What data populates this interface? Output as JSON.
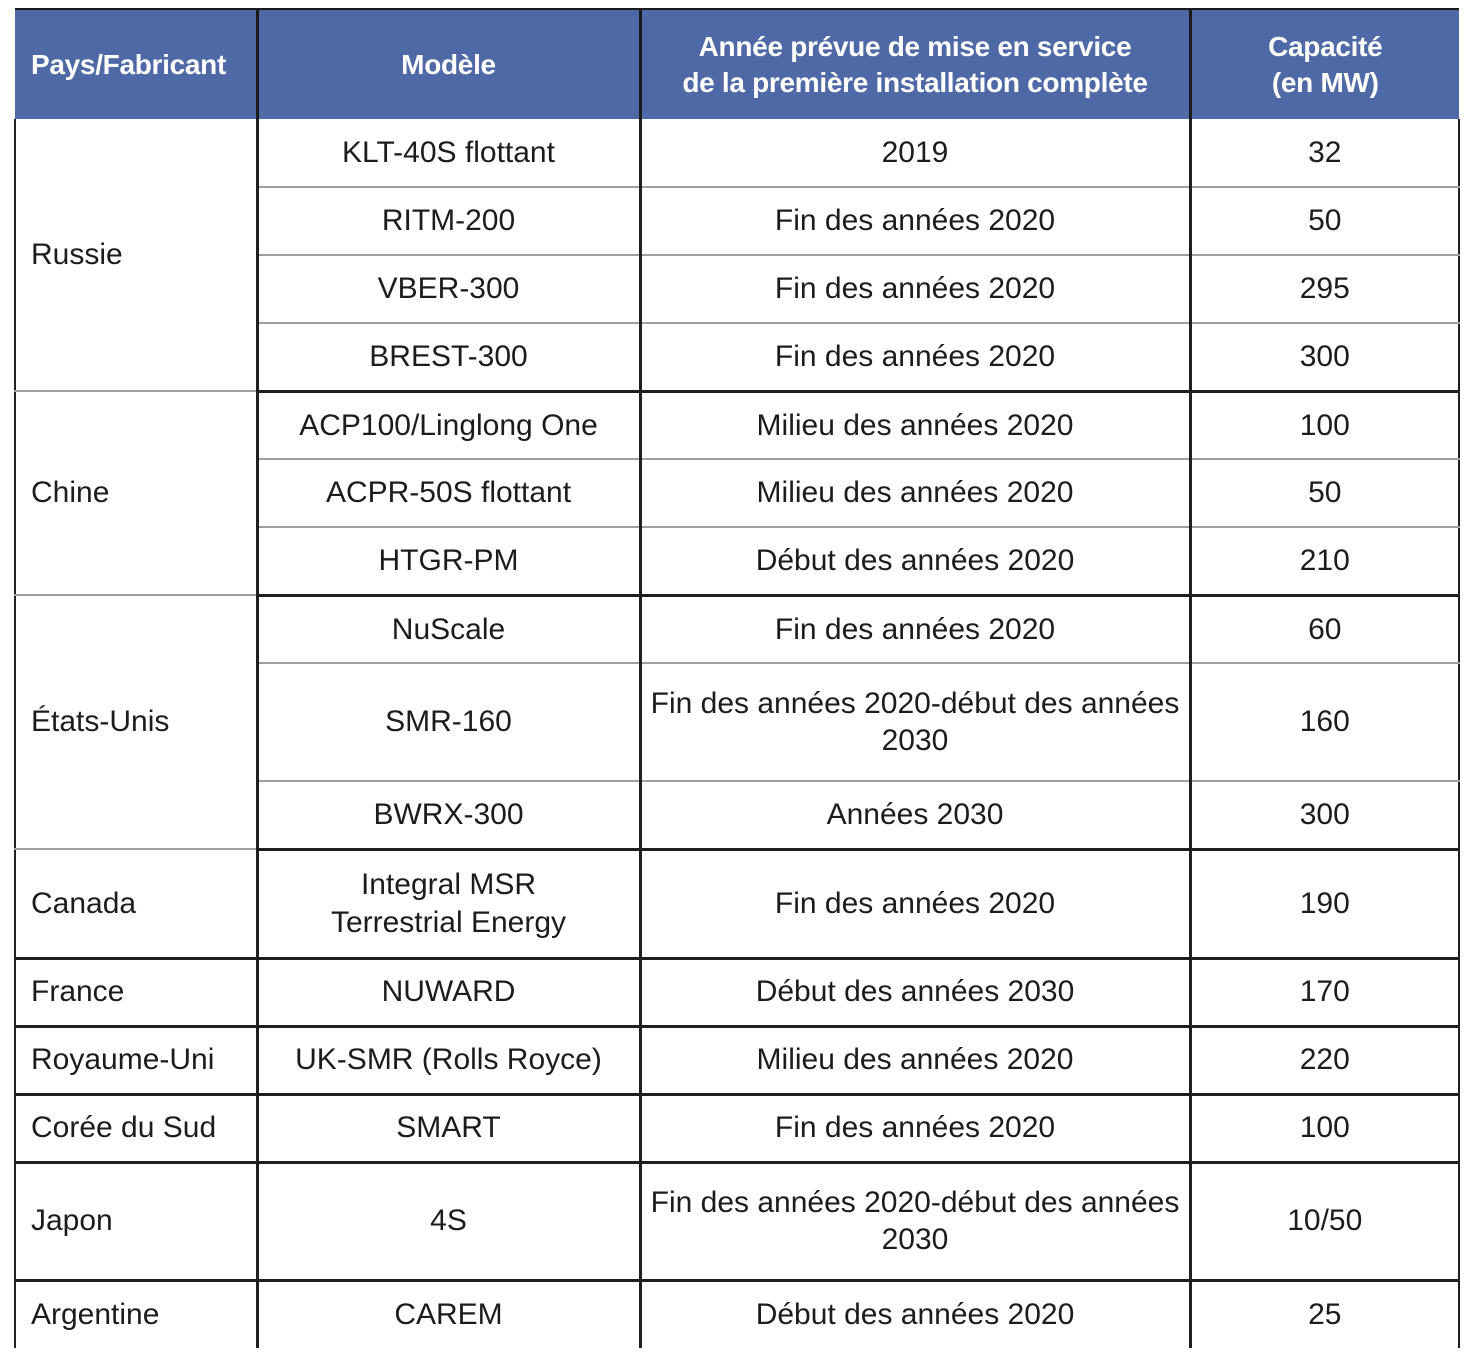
{
  "table": {
    "header": {
      "country": "Pays/Fabricant",
      "model": "Modèle",
      "year_line1": "Année prévue de mise en service",
      "year_line2": "de la première installation complète",
      "capacity_line1": "Capacité",
      "capacity_line2": "(en MW)"
    },
    "colors": {
      "header_bg": "#4e69a6",
      "header_text": "#ffffff",
      "body_text": "#1c1c1c",
      "group_border": "#1f1f1f",
      "inner_border": "#9f9f9f"
    },
    "groups": [
      {
        "name": "Russie",
        "rows": [
          {
            "model": "KLT-40S flottant",
            "year": "2019",
            "capacity": "32"
          },
          {
            "model": "RITM-200",
            "year": "Fin des années 2020",
            "capacity": "50"
          },
          {
            "model": "VBER-300",
            "year": "Fin des années 2020",
            "capacity": "295"
          },
          {
            "model": "BREST-300",
            "year": "Fin des années 2020",
            "capacity": "300"
          }
        ]
      },
      {
        "name": "Chine",
        "rows": [
          {
            "model": "ACP100/Linglong One",
            "year": "Milieu des années 2020",
            "capacity": "100"
          },
          {
            "model": "ACPR-50S flottant",
            "year": "Milieu des années 2020",
            "capacity": "50"
          },
          {
            "model": "HTGR-PM",
            "year": "Début des années 2020",
            "capacity": "210"
          }
        ]
      },
      {
        "name": "États-Unis",
        "rows": [
          {
            "model": "NuScale",
            "year": "Fin des années 2020",
            "capacity": "60"
          },
          {
            "model": "SMR-160",
            "year": "Fin des années 2020-début des années 2030",
            "capacity": "160"
          },
          {
            "model": "BWRX-300",
            "year": "Années 2030",
            "capacity": "300"
          }
        ]
      },
      {
        "name": "Canada",
        "rows": [
          {
            "model": "Integral MSR\nTerrestrial Energy",
            "year": "Fin des années 2020",
            "capacity": "190"
          }
        ]
      },
      {
        "name": "France",
        "rows": [
          {
            "model": "NUWARD",
            "year": "Début des années 2030",
            "capacity": "170"
          }
        ]
      },
      {
        "name": "Royaume-Uni",
        "rows": [
          {
            "model": "UK-SMR (Rolls Royce)",
            "year": "Milieu des années 2020",
            "capacity": "220"
          }
        ]
      },
      {
        "name": "Corée du Sud",
        "rows": [
          {
            "model": "SMART",
            "year": "Fin des années 2020",
            "capacity": "100"
          }
        ]
      },
      {
        "name": "Japon",
        "rows": [
          {
            "model": "4S",
            "year": "Fin des années 2020-début des années 2030",
            "capacity": "10/50"
          }
        ]
      },
      {
        "name": "Argentine",
        "rows": [
          {
            "model": "CAREM",
            "year": "Début des années 2020",
            "capacity": "25"
          }
        ]
      }
    ]
  }
}
